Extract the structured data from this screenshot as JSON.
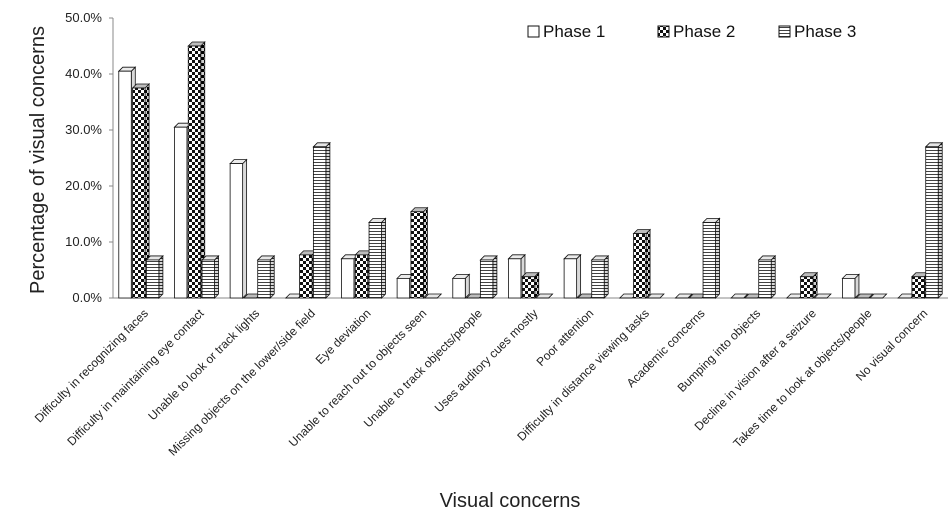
{
  "chart_data": {
    "type": "bar",
    "title": "",
    "xlabel": "Visual concerns",
    "ylabel": "Percentage of visual concerns",
    "ylim": [
      0,
      50
    ],
    "yticks": [
      "0.0%",
      "10.0%",
      "20.0%",
      "30.0%",
      "40.0%",
      "50.0%"
    ],
    "grid": false,
    "legend_position": "top-right",
    "categories": [
      "Difficulty in recognizing faces",
      "Difficulty in maintaining eye contact",
      "Unable to look or track lights",
      "Missing objects on the lower/side field",
      "Eye deviation",
      "Unable to reach out to objects seen",
      "Unable to track objects/people",
      "Uses auditory cues mostly",
      "Poor attention",
      "Difficulty in distance viewing tasks",
      "Academic concerns",
      "Bumping into objects",
      "Decline in vision after a seizure",
      "Takes time to look at objects/people",
      "No visual concern"
    ],
    "series": [
      {
        "name": "Phase 1",
        "values": [
          40.5,
          30.5,
          24.0,
          0.0,
          7.0,
          3.5,
          3.5,
          7.0,
          7.0,
          0.0,
          0.0,
          0.0,
          0.0,
          3.5,
          0.0
        ]
      },
      {
        "name": "Phase 2",
        "values": [
          37.5,
          45.0,
          0.0,
          7.7,
          7.7,
          15.4,
          0.0,
          3.8,
          0.0,
          11.5,
          0.0,
          0.0,
          3.8,
          0.0,
          3.8
        ]
      },
      {
        "name": "Phase 3",
        "values": [
          6.8,
          6.8,
          6.8,
          27.0,
          13.5,
          0.0,
          6.8,
          0.0,
          6.8,
          0.0,
          13.5,
          6.8,
          0.0,
          0.0,
          27.0
        ]
      }
    ]
  }
}
